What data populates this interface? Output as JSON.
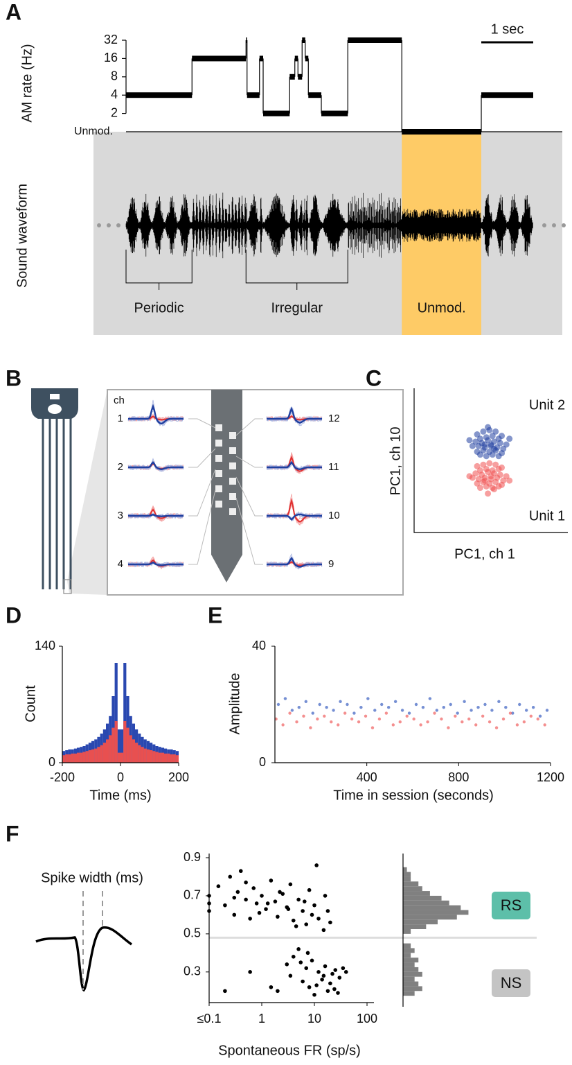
{
  "chart_data": [
    {
      "type": "step",
      "panel": "A",
      "ylabel": "AM rate (Hz)",
      "y_log": true,
      "x": [
        0,
        1.27,
        2.31,
        2.33,
        2.57,
        2.64,
        3.15,
        3.25,
        3.31,
        3.39,
        3.45,
        3.51,
        3.76,
        4.27,
        5.31,
        6.84
      ],
      "values": [
        4,
        16,
        32,
        4,
        16,
        2,
        8,
        16,
        8,
        32,
        16,
        4,
        2,
        32,
        1,
        4
      ],
      "xlim": [
        0,
        7.84
      ],
      "ylim": [
        1,
        32
      ],
      "yticks": [
        {
          "value": 1,
          "label": "Unmod."
        },
        2,
        4,
        8,
        16,
        32
      ],
      "color": "#000000",
      "scale_bar": {
        "value": 1,
        "label": "1 sec"
      },
      "waveform_label": "Sound waveform",
      "regions": [
        {
          "label": "Periodic",
          "x": [
            0,
            1.27
          ]
        },
        {
          "label": "Irregular",
          "x": [
            2.31,
            4.27
          ]
        },
        {
          "label": "Unmod.",
          "x": [
            5.31,
            6.84
          ],
          "highlight": true
        }
      ],
      "highlight_color": "#fecb66"
    },
    {
      "type": "scatter",
      "panel": "C",
      "xlabel": "PC1, ch 1",
      "ylabel": "PC1, ch 10",
      "xlim": [
        0,
        10
      ],
      "ylim": [
        0,
        10
      ],
      "series": [
        {
          "name": "Unit 2",
          "color": "#2140a0",
          "x": [
            4.1,
            4.5,
            4.9,
            5.3,
            5.7,
            4.3,
            4.7,
            5.1,
            5.5,
            4.0,
            4.4,
            4.8,
            5.2,
            5.6,
            6.0,
            3.8,
            4.2,
            4.6,
            5.0,
            5.4,
            5.8,
            4.1,
            4.5,
            4.9,
            5.3,
            5.7,
            4.3,
            4.7,
            5.1,
            5.5,
            3.6,
            6.2,
            4.8,
            5.0,
            4.6,
            5.2
          ],
          "values": [
            6.8,
            7.0,
            7.1,
            7.0,
            6.7,
            6.5,
            6.6,
            6.7,
            6.5,
            6.3,
            6.2,
            6.4,
            6.3,
            6.2,
            6.1,
            6.0,
            6.0,
            5.9,
            6.0,
            5.9,
            5.8,
            5.6,
            5.7,
            5.6,
            5.7,
            5.5,
            5.4,
            5.3,
            5.4,
            5.3,
            6.4,
            6.5,
            7.3,
            6.1,
            6.1,
            5.8
          ]
        },
        {
          "name": "Unit 1",
          "color": "#f05050",
          "x": [
            4.1,
            4.5,
            4.9,
            5.3,
            5.7,
            4.3,
            4.7,
            5.1,
            5.5,
            4.0,
            4.4,
            4.8,
            5.2,
            5.6,
            6.0,
            3.8,
            4.2,
            4.6,
            5.0,
            5.4,
            5.8,
            4.1,
            4.5,
            4.9,
            5.3,
            5.7,
            4.3,
            4.7,
            5.1,
            5.5,
            3.6,
            6.2,
            4.8,
            5.0,
            4.6,
            5.2
          ],
          "values": [
            4.6,
            4.7,
            4.8,
            4.7,
            4.5,
            4.3,
            4.4,
            4.3,
            4.4,
            4.1,
            4.0,
            4.2,
            4.1,
            4.0,
            3.9,
            3.8,
            3.7,
            3.8,
            3.7,
            3.8,
            3.6,
            3.4,
            3.5,
            3.4,
            3.5,
            3.3,
            3.1,
            3.2,
            3.1,
            3.2,
            3.9,
            3.6,
            2.7,
            3.9,
            3.6,
            3.0
          ]
        }
      ]
    },
    {
      "type": "histogram",
      "panel": "D",
      "xlabel": "Time (ms)",
      "ylabel": "Count",
      "bins": [
        -200,
        -190,
        -180,
        -170,
        -160,
        -150,
        -140,
        -130,
        -120,
        -110,
        -100,
        -90,
        -80,
        -70,
        -60,
        -50,
        -40,
        -30,
        -20,
        -10,
        0,
        10,
        20,
        30,
        40,
        50,
        60,
        70,
        80,
        90,
        100,
        110,
        120,
        130,
        140,
        150,
        160,
        170,
        180,
        190,
        200
      ],
      "xlim": [
        -200,
        200
      ],
      "xticks": [
        -200,
        0,
        200
      ],
      "ylim": [
        0,
        140
      ],
      "yticks": [
        0,
        140
      ],
      "series": [
        {
          "color": "#2a48b0",
          "values": [
            14,
            15,
            16,
            16,
            17,
            18,
            19,
            20,
            22,
            24,
            26,
            28,
            31,
            35,
            40,
            47,
            56,
            80,
            120,
            40,
            40,
            120,
            80,
            56,
            47,
            40,
            35,
            31,
            28,
            26,
            24,
            22,
            20,
            19,
            18,
            17,
            16,
            16,
            15,
            14
          ]
        },
        {
          "color": "#e85050",
          "values": [
            9,
            10,
            10,
            11,
            11,
            12,
            12,
            13,
            14,
            15,
            16,
            17,
            19,
            21,
            24,
            28,
            33,
            42,
            50,
            12,
            12,
            50,
            42,
            33,
            28,
            24,
            21,
            19,
            17,
            16,
            15,
            14,
            13,
            12,
            12,
            11,
            11,
            10,
            10,
            9
          ]
        }
      ]
    },
    {
      "type": "scatter",
      "panel": "E",
      "xlabel": "Time in session (seconds)",
      "ylabel": "Amplitude",
      "xlim": [
        0,
        1200
      ],
      "xticks": [
        400,
        800,
        1200
      ],
      "ylim": [
        0,
        40
      ],
      "yticks": [
        0,
        40
      ],
      "series": [
        {
          "color": "#3a5fc0",
          "x": [
            15,
            45,
            75,
            105,
            135,
            165,
            195,
            225,
            255,
            285,
            315,
            345,
            375,
            405,
            435,
            465,
            495,
            525,
            555,
            585,
            615,
            645,
            675,
            705,
            735,
            765,
            795,
            825,
            855,
            885,
            915,
            945,
            975,
            1005,
            1035,
            1065,
            1095,
            1125,
            1155,
            1185
          ],
          "values": [
            20,
            22,
            18,
            19,
            21,
            17,
            20,
            19,
            18,
            21,
            20,
            17,
            19,
            22,
            18,
            20,
            19,
            21,
            18,
            17,
            20,
            19,
            22,
            18,
            19,
            20,
            17,
            21,
            18,
            19,
            20,
            18,
            21,
            19,
            17,
            20,
            18,
            19,
            16,
            18
          ]
        },
        {
          "color": "#f06060",
          "x": [
            5,
            35,
            65,
            95,
            125,
            155,
            185,
            215,
            245,
            275,
            305,
            335,
            365,
            395,
            425,
            455,
            485,
            515,
            545,
            575,
            605,
            635,
            665,
            695,
            725,
            755,
            785,
            815,
            845,
            875,
            905,
            935,
            965,
            995,
            1025,
            1055,
            1085,
            1115,
            1145,
            1175
          ],
          "values": [
            15,
            13,
            17,
            14,
            16,
            12,
            15,
            16,
            14,
            13,
            17,
            15,
            14,
            16,
            12,
            15,
            17,
            13,
            14,
            16,
            15,
            13,
            14,
            17,
            15,
            12,
            16,
            14,
            15,
            13,
            16,
            14,
            12,
            15,
            17,
            13,
            14,
            16,
            15,
            13
          ]
        }
      ]
    },
    {
      "type": "scatter",
      "panel": "F",
      "xlabel": "Spontaneous FR (sp/s)",
      "x_log": true,
      "xlim": [
        0.1,
        100
      ],
      "xticks": [
        {
          "value": 0.1,
          "label": "≤0.1"
        },
        1,
        10,
        100
      ],
      "ylim": [
        0.15,
        0.9
      ],
      "yticks": [
        0.3,
        0.5,
        0.7,
        0.9
      ],
      "threshold": 0.48,
      "color": "#000000",
      "x": [
        0.1,
        0.1,
        0.1,
        0.15,
        0.2,
        0.25,
        0.3,
        0.35,
        0.4,
        0.5,
        0.6,
        0.7,
        0.8,
        1,
        1.2,
        1.5,
        1.8,
        2,
        2.5,
        3,
        3.5,
        4,
        5,
        6,
        7,
        8,
        9,
        10,
        12,
        15,
        18,
        20,
        0.3,
        0.5,
        0.9,
        1.3,
        2.2,
        3.2,
        4.5,
        6.5,
        11,
        16,
        0.2,
        0.6,
        1.5,
        2,
        3,
        3.5,
        4,
        5,
        6,
        7,
        8,
        9,
        10,
        12,
        14,
        16,
        18,
        20,
        22,
        25,
        28,
        30,
        35,
        40,
        5.5,
        7.5,
        11,
        15,
        24
      ],
      "values": [
        0.62,
        0.7,
        0.66,
        0.75,
        0.65,
        0.8,
        0.6,
        0.72,
        0.83,
        0.68,
        0.58,
        0.74,
        0.66,
        0.7,
        0.63,
        0.78,
        0.67,
        0.59,
        0.71,
        0.64,
        0.76,
        0.57,
        0.68,
        0.62,
        0.55,
        0.73,
        0.6,
        0.65,
        0.58,
        0.52,
        0.62,
        0.56,
        0.69,
        0.77,
        0.61,
        0.66,
        0.72,
        0.63,
        0.54,
        0.67,
        0.86,
        0.7,
        0.2,
        0.3,
        0.22,
        0.2,
        0.34,
        0.28,
        0.38,
        0.42,
        0.25,
        0.32,
        0.22,
        0.36,
        0.18,
        0.3,
        0.26,
        0.33,
        0.2,
        0.24,
        0.29,
        0.31,
        0.19,
        0.27,
        0.32,
        0.3,
        0.35,
        0.4,
        0.23,
        0.28,
        0.21
      ],
      "histogram": {
        "bins": [
          0.175,
          0.2,
          0.225,
          0.25,
          0.275,
          0.3,
          0.325,
          0.35,
          0.375,
          0.4,
          0.425,
          0.45,
          0.475,
          0.5,
          0.525,
          0.55,
          0.575,
          0.6,
          0.625,
          0.65,
          0.675,
          0.7,
          0.725,
          0.75,
          0.775,
          0.8,
          0.825,
          0.85
        ],
        "values": [
          3,
          5,
          4,
          3,
          5,
          4,
          3,
          4,
          2,
          3,
          2,
          0,
          0,
          2,
          6,
          9,
          14,
          17,
          15,
          12,
          10,
          7,
          5,
          4,
          2,
          2,
          1
        ],
        "xlim": [
          0,
          18
        ],
        "color": "#808080"
      },
      "annotation": "Spike width (ms)",
      "classes": [
        {
          "label": "RS",
          "color": "#5dbfa9"
        },
        {
          "label": "NS",
          "color": "#c4c4c4"
        }
      ]
    }
  ],
  "probe_diagram": {
    "panel": "B",
    "channel_header": "ch",
    "left_channels": [
      1,
      2,
      3,
      4
    ],
    "right_channels": [
      12,
      11,
      10,
      9
    ]
  }
}
